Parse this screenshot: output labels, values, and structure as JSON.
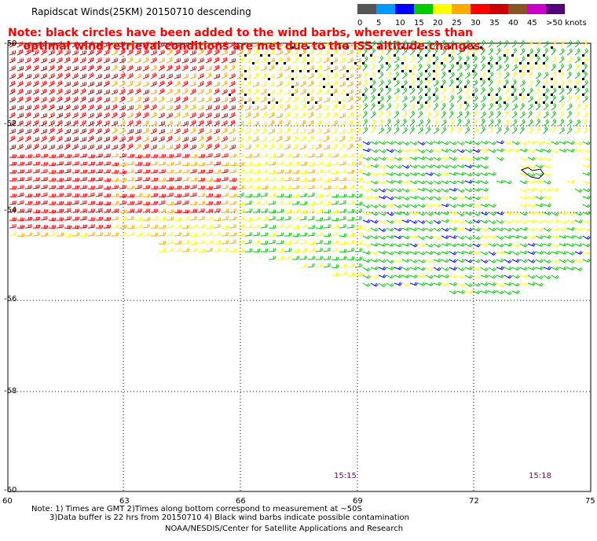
{
  "title": "Rapidscat Winds(25KM) 20150710 descending",
  "note_lines": [
    "Note: black circles have been added to the wind barbs, wherever less than",
    "    optimal wind retrieval conditions are met due to the ISS altitude changes."
  ],
  "legend": {
    "colors": [
      "#555555",
      "#0099ff",
      "#0000ff",
      "#00cc00",
      "#ffff00",
      "#ffaa00",
      "#ff0000",
      "#cc0000",
      "#885522",
      "#cc00cc",
      "#550077"
    ],
    "labels": [
      "0",
      "5",
      "10",
      "15",
      "20",
      "25",
      "30",
      "35",
      "40",
      "45",
      ">50 knots"
    ]
  },
  "map": {
    "lat_labels": [
      "-50",
      "-52",
      "-54",
      "-56",
      "-58",
      "-60"
    ],
    "lon_labels": [
      "60",
      "63",
      "66",
      "69",
      "72",
      "75"
    ],
    "pass_times": [
      "15:15",
      "15:18"
    ]
  },
  "footer": [
    "Note: 1) Times are GMT 2)Times along bottom correspond to measurement at ~50S",
    "3)Data buffer is 22 hrs from 20150710 4) Black wind barbs indicate possible contamination",
    "NOAA/NESDIS/Center for Satellite Applications and Research"
  ]
}
